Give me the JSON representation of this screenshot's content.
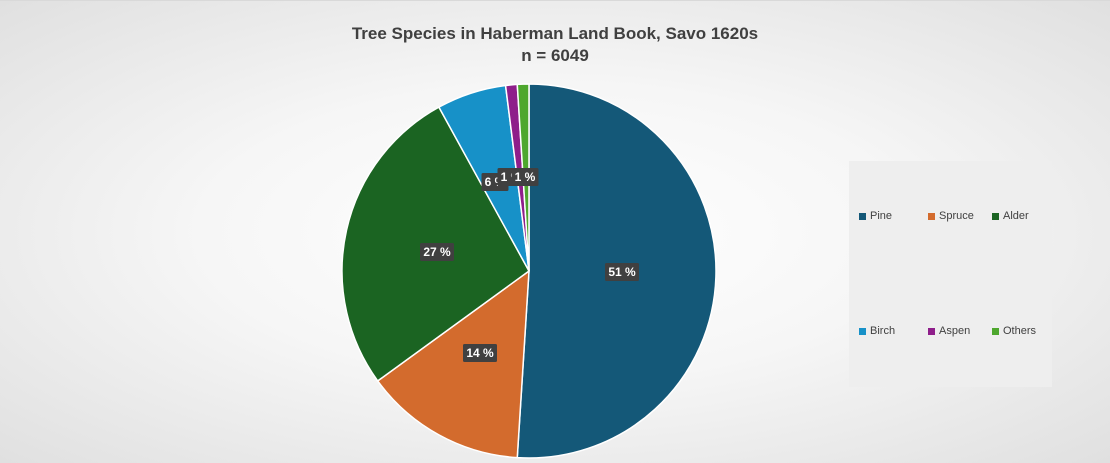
{
  "chart_data": {
    "type": "pie",
    "title": "Tree Species in Haberman Land Book, Savo 1620s",
    "subtitle": "n = 6049",
    "legend_position": "right",
    "slices": [
      {
        "label": "Pine",
        "value": 51,
        "display": "51 %",
        "color": "#145878"
      },
      {
        "label": "Spruce",
        "value": 14,
        "display": "14 %",
        "color": "#d36b2d"
      },
      {
        "label": "Alder",
        "value": 27,
        "display": "27 %",
        "color": "#1b6422"
      },
      {
        "label": "Birch",
        "value": 6,
        "display": "6 %",
        "color": "#1791c8"
      },
      {
        "label": "Aspen",
        "value": 1,
        "display": "1 %",
        "color": "#8e1e8a"
      },
      {
        "label": "Others",
        "value": 1,
        "display": "1 %",
        "color": "#4ea72e"
      }
    ]
  }
}
